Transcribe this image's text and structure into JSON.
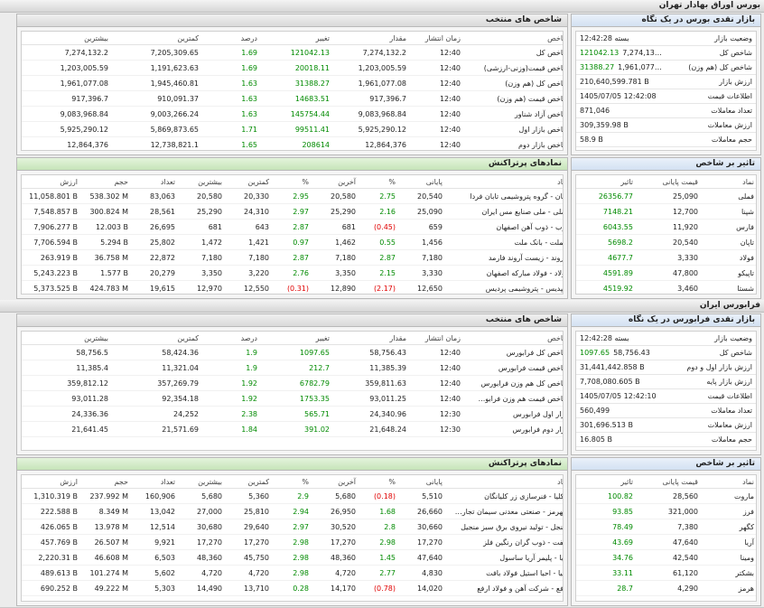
{
  "sections": [
    {
      "title": "بورس اوراق بهادار تهران",
      "overview": {
        "title": "بازار نقدی بورس در یک نگاه",
        "rows": [
          {
            "label": "وضعیت بازار",
            "value": "بسته 12:42:28"
          },
          {
            "label": "شاخص کل",
            "value": "7,274,132.2",
            "change": "121042.13"
          },
          {
            "label": "شاخص کل (هم وزن)",
            "value": "1,961,077.08",
            "change": "31388.27"
          },
          {
            "label": "ارزش بازار",
            "value": "210,640,599.781 B"
          },
          {
            "label": "اطلاعات قیمت",
            "value": "1405/07/05 12:42:08"
          },
          {
            "label": "تعداد معاملات",
            "value": "871,046"
          },
          {
            "label": "ارزش معاملات",
            "value": "309,359.98 B"
          },
          {
            "label": "حجم معاملات",
            "value": "58.9 B"
          }
        ]
      },
      "indices": {
        "title": "شاخص های منتخب",
        "columns": [
          "شاخص",
          "زمان انتشار",
          "مقدار",
          "تغییر",
          "درصد",
          "کمترین",
          "بیشترین"
        ],
        "rows": [
          [
            "شاخص کل",
            "12:40",
            "7,274,132.2",
            "121042.13",
            "1.69",
            "7,205,309.65",
            "7,274,132.2"
          ],
          [
            "شاخص قیمت(وزنی-ارزشی)",
            "12:40",
            "1,203,005.59",
            "20018.11",
            "1.69",
            "1,191,623.63",
            "1,203,005.59"
          ],
          [
            "شاخص کل (هم وزن)",
            "12:40",
            "1,961,077.08",
            "31388.27",
            "1.63",
            "1,945,460.81",
            "1,961,077.08"
          ],
          [
            "شاخص قیمت (هم وزن)",
            "12:40",
            "917,396.7",
            "14683.51",
            "1.63",
            "910,091.37",
            "917,396.7"
          ],
          [
            "شاخص آزاد شناور",
            "12:40",
            "9,083,968.84",
            "145754.44",
            "1.63",
            "9,003,266.24",
            "9,083,968.84"
          ],
          [
            "شاخص بازار اول",
            "12:40",
            "5,925,290.12",
            "99511.41",
            "1.71",
            "5,869,873.65",
            "5,925,290.12"
          ],
          [
            "شاخص بازار دوم",
            "12:40",
            "12,864,376",
            "208614",
            "1.65",
            "12,738,821.1",
            "12,864,376"
          ]
        ]
      },
      "active": {
        "title": "نمادهای پرتراکنش",
        "columns": [
          "نماد",
          "پایانی",
          "%",
          "آخرین",
          "%",
          "کمترین",
          "بیشترین",
          "تعداد",
          "حجم",
          "ارزش"
        ],
        "rows": [
          [
            "تاپان - گروه پتروشیمی تابان فردا",
            "20,540",
            "2.75",
            "20,580",
            "2.95",
            "20,330",
            "20,580",
            "83,063",
            "538.302 M",
            "11,058.801 B"
          ],
          [
            "فملی - ملی صنایع مس ایران",
            "25,090",
            "2.16",
            "25,290",
            "2.97",
            "24,310",
            "25,290",
            "28,561",
            "300.824 M",
            "7,548.857 B"
          ],
          [
            "ذوب - ذوب آهن اصفهان",
            "659",
            "(0.45)",
            "681",
            "2.87",
            "643",
            "681",
            "26,695",
            "12.003 B",
            "7,906.277 B"
          ],
          [
            "وبملت - بانک ملت",
            "1,456",
            "0.55",
            "1,462",
            "0.97",
            "1,421",
            "1,472",
            "25,802",
            "5.294 B",
            "7,706.594 B"
          ],
          [
            "داروند - زیست آروند فارمد",
            "7,180",
            "2.87",
            "7,180",
            "2.87",
            "7,180",
            "7,180",
            "22,872",
            "36.758 M",
            "263.919 B"
          ],
          [
            "فولاد - فولاد مبارکه اصفهان",
            "3,330",
            "2.15",
            "3,350",
            "2.76",
            "3,220",
            "3,350",
            "20,279",
            "1.577 B",
            "5,243.223 B"
          ],
          [
            "شپدیس - پتروشیمی پردیس",
            "12,650",
            "(2.17)",
            "12,890",
            "(0.31)",
            "12,550",
            "12,970",
            "19,615",
            "424.783 M",
            "5,373.525 B"
          ]
        ]
      },
      "impact": {
        "title": "تاثیر بر شاخص",
        "columns": [
          "نماد",
          "قیمت پایانی",
          "تاثیر"
        ],
        "rows": [
          [
            "فملی",
            "25,090",
            "26356.77"
          ],
          [
            "شپنا",
            "12,700",
            "7148.21"
          ],
          [
            "فارس",
            "11,920",
            "6043.55"
          ],
          [
            "تاپان",
            "20,540",
            "5698.2"
          ],
          [
            "فولاد",
            "3,330",
            "4677.7"
          ],
          [
            "تاپیکو",
            "47,800",
            "4591.89"
          ],
          [
            "شستا",
            "3,460",
            "4519.92"
          ]
        ]
      }
    },
    {
      "title": "فرابورس ایران",
      "overview": {
        "title": "بازار نقدی فرابورس در یک نگاه",
        "rows": [
          {
            "label": "وضعیت بازار",
            "value": "بسته 12:42:28"
          },
          {
            "label": "شاخص کل",
            "value": "58,756.43",
            "change": "1097.65"
          },
          {
            "label": "ارزش بازار اول و دوم",
            "value": "31,441,442.858 B"
          },
          {
            "label": "ارزش بازار پایه",
            "value": "7,708,080.605 B"
          },
          {
            "label": "اطلاعات قیمت",
            "value": "1405/07/05 12:42:10"
          },
          {
            "label": "تعداد معاملات",
            "value": "560,499"
          },
          {
            "label": "ارزش معاملات",
            "value": "301,696.513 B"
          },
          {
            "label": "حجم معاملات",
            "value": "16.805 B"
          }
        ]
      },
      "indices": {
        "title": "شاخص های منتخب",
        "columns": [
          "شاخص",
          "زمان انتشار",
          "مقدار",
          "تغییر",
          "درصد",
          "کمترین",
          "بیشترین"
        ],
        "rows": [
          [
            "شاخص کل فرابورس",
            "12:40",
            "58,756.43",
            "1097.65",
            "1.9",
            "58,424.36",
            "58,756.5"
          ],
          [
            "شاخص قیمت فرابورس",
            "12:40",
            "11,385.39",
            "212.7",
            "1.9",
            "11,321.04",
            "11,385.4"
          ],
          [
            "شاخص کل هم وزن فرابورس",
            "12:40",
            "359,811.63",
            "6782.79",
            "1.92",
            "357,269.79",
            "359,812.12"
          ],
          [
            "شاخص قیمت هم وزن فرابو...",
            "12:40",
            "93,011.25",
            "1753.35",
            "1.92",
            "92,354.18",
            "93,011.28"
          ],
          [
            "بازار اول فرابورس",
            "12:30",
            "24,340.96",
            "565.71",
            "2.38",
            "24,252",
            "24,336.36"
          ],
          [
            "بازار دوم فرابورس",
            "12:30",
            "21,648.24",
            "391.02",
            "1.84",
            "21,571.69",
            "21,641.45"
          ]
        ]
      },
      "active": {
        "title": "نمادهای پرتراکنش",
        "columns": [
          "نماد",
          "پایانی",
          "%",
          "آخرین",
          "%",
          "کمترین",
          "بیشترین",
          "تعداد",
          "حجم",
          "ارزش"
        ],
        "rows": [
          [
            "حکلیا - فنرسازی زر کلیانگان",
            "5,510",
            "(0.18)",
            "5,680",
            "2.9",
            "5,360",
            "5,680",
            "160,906",
            "237.992 M",
            "1,310.319 B"
          ],
          [
            "سهرمز - صنعتی معدنی سیمان تجارت...",
            "26,660",
            "1.68",
            "26,950",
            "2.94",
            "25,810",
            "27,000",
            "13,042",
            "8.349 M",
            "222.588 B"
          ],
          [
            "صنجل - تولید نیروی برق سبز منجیل",
            "30,660",
            "2.8",
            "30,520",
            "2.97",
            "29,640",
            "30,680",
            "12,514",
            "13.978 M",
            "426.065 B"
          ],
          [
            "فنفت - ذوب گران رنگین فلز",
            "17,270",
            "2.98",
            "17,270",
            "2.98",
            "17,270",
            "17,270",
            "9,921",
            "26.507 M",
            "457.769 B"
          ],
          [
            "آریا - پلیمر آریا ساسول",
            "47,640",
            "1.45",
            "48,360",
            "2.98",
            "45,750",
            "48,360",
            "6,503",
            "46.608 M",
            "2,220.31 B"
          ],
          [
            "احیا - احیا استیل فولاد بافت",
            "4,830",
            "2.77",
            "4,720",
            "2.98",
            "4,720",
            "4,720",
            "5,602",
            "101.274 M",
            "489.613 B"
          ],
          [
            "ارفع - شرکت آهن و فولاد ارفع",
            "14,020",
            "(0.78)",
            "14,170",
            "0.28",
            "13,710",
            "14,490",
            "5,303",
            "49.222 M",
            "690.252 B"
          ]
        ]
      },
      "impact": {
        "title": "تاثیر بر شاخص",
        "columns": [
          "نماد",
          "قیمت پایانی",
          "تاثیر"
        ],
        "rows": [
          [
            "ماروت",
            "28,560",
            "100.82"
          ],
          [
            "فرز",
            "321,000",
            "93.85"
          ],
          [
            "کگهر",
            "7,380",
            "78.49"
          ],
          [
            "آریا",
            "47,640",
            "43.69"
          ],
          [
            "ومینا",
            "42,540",
            "34.76"
          ],
          [
            "بشکتر",
            "61,120",
            "33.11"
          ],
          [
            "هرمز",
            "4,290",
            "28.7"
          ]
        ]
      }
    }
  ]
}
